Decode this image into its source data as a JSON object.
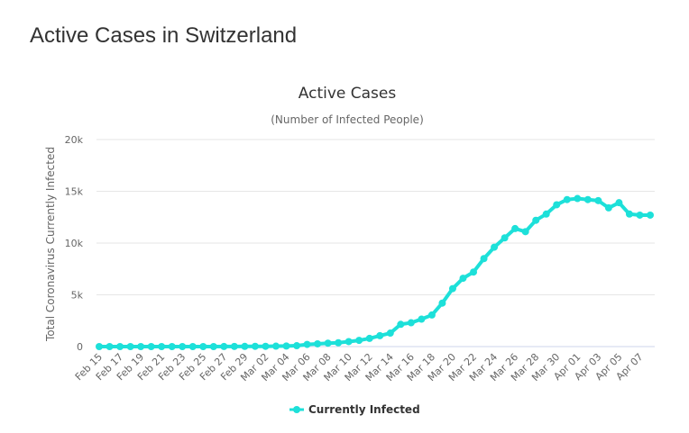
{
  "page": {
    "heading": "Active Cases in Switzerland"
  },
  "chart_data": {
    "type": "line",
    "title": "Active Cases",
    "subtitle": "(Number of Infected People)",
    "xlabel": "",
    "ylabel": "Total Coronavirus Currently Infected",
    "ylim": [
      0,
      20000
    ],
    "yticks": [
      0,
      5000,
      10000,
      15000,
      20000
    ],
    "ytick_labels": [
      "0",
      "5k",
      "10k",
      "15k",
      "20k"
    ],
    "grid": true,
    "legend_position": "bottom-center",
    "x": [
      "Feb 15",
      "Feb 16",
      "Feb 17",
      "Feb 18",
      "Feb 19",
      "Feb 20",
      "Feb 21",
      "Feb 22",
      "Feb 23",
      "Feb 24",
      "Feb 25",
      "Feb 26",
      "Feb 27",
      "Feb 28",
      "Feb 29",
      "Mar 01",
      "Mar 02",
      "Mar 03",
      "Mar 04",
      "Mar 05",
      "Mar 06",
      "Mar 07",
      "Mar 08",
      "Mar 09",
      "Mar 10",
      "Mar 11",
      "Mar 12",
      "Mar 13",
      "Mar 14",
      "Mar 15",
      "Mar 16",
      "Mar 17",
      "Mar 18",
      "Mar 19",
      "Mar 20",
      "Mar 21",
      "Mar 22",
      "Mar 23",
      "Mar 24",
      "Mar 25",
      "Mar 26",
      "Mar 27",
      "Mar 28",
      "Mar 29",
      "Mar 30",
      "Mar 31",
      "Apr 01",
      "Apr 02",
      "Apr 03",
      "Apr 04",
      "Apr 05",
      "Apr 06",
      "Apr 07",
      "Apr 08"
    ],
    "xtick_labels": [
      "Feb 15",
      "Feb 17",
      "Feb 19",
      "Feb 21",
      "Feb 23",
      "Feb 25",
      "Feb 27",
      "Feb 29",
      "Mar 02",
      "Mar 04",
      "Mar 06",
      "Mar 08",
      "Mar 10",
      "Mar 12",
      "Mar 14",
      "Mar 16",
      "Mar 18",
      "Mar 20",
      "Mar 22",
      "Mar 24",
      "Mar 26",
      "Mar 28",
      "Mar 30",
      "Apr 01",
      "Apr 03",
      "Apr 05",
      "Apr 07"
    ],
    "series": [
      {
        "name": "Currently Infected",
        "color": "#1de0d9",
        "values": [
          0,
          0,
          0,
          0,
          0,
          0,
          0,
          0,
          0,
          0,
          0,
          1,
          8,
          15,
          18,
          24,
          27,
          40,
          55,
          85,
          210,
          265,
          330,
          370,
          480,
          600,
          790,
          1050,
          1300,
          2150,
          2300,
          2650,
          3050,
          4200,
          5600,
          6600,
          7200,
          8500,
          9600,
          10500,
          11400,
          11100,
          12200,
          12800,
          13700,
          14200,
          14300,
          14200,
          14100,
          13400,
          13900,
          12800,
          12700,
          12700
        ]
      }
    ]
  }
}
